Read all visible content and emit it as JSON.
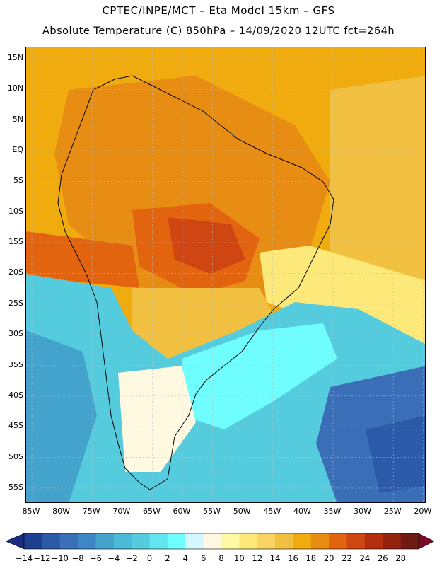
{
  "header": {
    "line1": "CPTEC/INPE/MCT –  Eta Model 15km – GFS",
    "line2": "Absolute Temperature (C) 850hPa – 14/09/2020 12UTC fct=264h"
  },
  "axes": {
    "lat_ticks": [
      "15N",
      "10N",
      "5N",
      "EQ",
      "5S",
      "10S",
      "15S",
      "20S",
      "25S",
      "30S",
      "35S",
      "40S",
      "45S",
      "50S",
      "55S"
    ],
    "lon_ticks": [
      "85W",
      "80W",
      "75W",
      "70W",
      "65W",
      "60W",
      "55W",
      "50W",
      "45W",
      "40W",
      "35W",
      "30W",
      "25W",
      "20W"
    ]
  },
  "colorbar": {
    "labels": [
      "-14",
      "-12",
      "-10",
      "-8",
      "-6",
      "-4",
      "-2",
      "0",
      "2",
      "4",
      "6",
      "8",
      "10",
      "12",
      "14",
      "16",
      "18",
      "20",
      "22",
      "24",
      "26",
      "28"
    ],
    "colors": [
      "#1c3f8f",
      "#2a5aa8",
      "#3a6fb8",
      "#3f86c5",
      "#43a3cd",
      "#4bbad8",
      "#55ccde",
      "#63e5ef",
      "#6ffdfd",
      "#d2f7ff",
      "#fff9e2",
      "#fff9a6",
      "#fde87a",
      "#f9d462",
      "#f2c040",
      "#f0ac0e",
      "#e88d14",
      "#e2640f",
      "#cf4612",
      "#b42f0e",
      "#962211",
      "#701a13"
    ],
    "low_arrow_color": "#1a2c80",
    "high_arrow_color": "#7a0a28"
  },
  "map_palette": {
    "ocean_base": "#f0ac0e"
  }
}
